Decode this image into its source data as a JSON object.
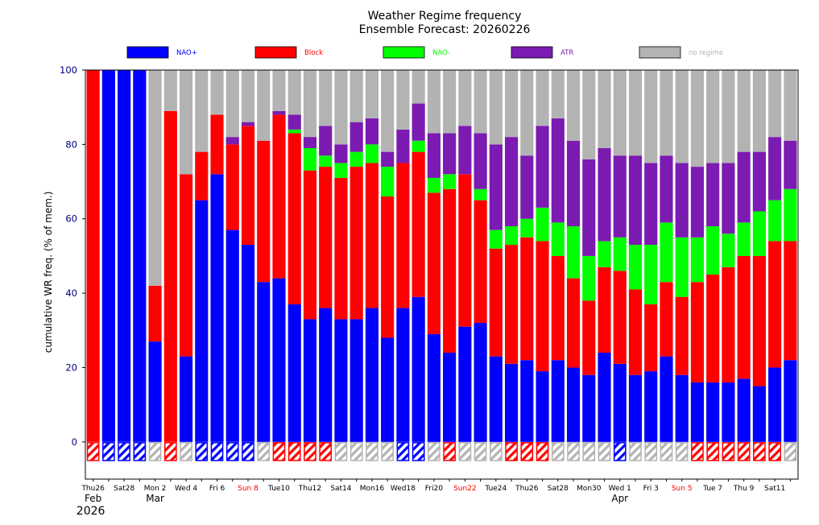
{
  "chart_data": {
    "type": "bar",
    "title": "Weather Regime frequency",
    "subtitle": "Ensemble Forecast: 20260226",
    "ylabel": "cumulative WR freq. (% of mem.)",
    "ylim": [
      -10,
      100
    ],
    "yticks": [
      0,
      20,
      40,
      60,
      80,
      100
    ],
    "stacked": true,
    "legend": {
      "placement": "top"
    },
    "series": [
      {
        "name": "NAO+",
        "color": "#0000ff",
        "values": [
          0,
          100,
          100,
          100,
          27,
          0,
          23,
          65,
          72,
          57,
          53,
          43,
          44,
          37,
          33,
          36,
          33,
          33,
          36,
          28,
          36,
          39,
          29,
          24,
          31,
          32,
          23,
          21,
          22,
          19,
          22,
          20,
          18,
          24,
          21,
          18,
          19,
          23,
          18,
          16,
          16,
          16,
          17,
          15,
          20,
          22
        ]
      },
      {
        "name": "Block",
        "color": "#ff0000",
        "values": [
          100,
          0,
          0,
          0,
          15,
          89,
          49,
          13,
          16,
          23,
          32,
          38,
          44,
          46,
          40,
          38,
          38,
          41,
          39,
          38,
          39,
          39,
          38,
          44,
          41,
          33,
          29,
          32,
          33,
          35,
          28,
          24,
          20,
          23,
          25,
          23,
          18,
          20,
          21,
          27,
          29,
          31,
          33,
          35,
          34,
          32
        ]
      },
      {
        "name": "NAO-",
        "color": "#00ff00",
        "values": [
          0,
          0,
          0,
          0,
          0,
          0,
          0,
          0,
          0,
          0,
          0,
          0,
          0,
          1,
          6,
          3,
          4,
          4,
          5,
          8,
          0,
          3,
          4,
          4,
          0,
          3,
          5,
          5,
          5,
          9,
          9,
          14,
          12,
          7,
          9,
          12,
          16,
          16,
          16,
          12,
          13,
          9,
          9,
          12,
          11,
          14
        ]
      },
      {
        "name": "ATR",
        "color": "#7b1bb1",
        "values": [
          0,
          0,
          0,
          0,
          0,
          0,
          0,
          0,
          0,
          2,
          1,
          0,
          1,
          4,
          3,
          8,
          5,
          8,
          7,
          4,
          9,
          10,
          12,
          11,
          13,
          15,
          23,
          24,
          17,
          22,
          28,
          23,
          26,
          25,
          22,
          24,
          22,
          18,
          20,
          19,
          17,
          19,
          19,
          16,
          17,
          13
        ]
      },
      {
        "name": "no regime",
        "color": "#b3b3b3",
        "values": [
          0,
          0,
          0,
          0,
          58,
          11,
          28,
          22,
          12,
          18,
          14,
          19,
          11,
          12,
          18,
          15,
          20,
          14,
          13,
          22,
          16,
          9,
          17,
          17,
          15,
          17,
          20,
          18,
          23,
          15,
          13,
          19,
          24,
          21,
          23,
          23,
          25,
          23,
          25,
          26,
          25,
          25,
          22,
          22,
          18,
          19
        ]
      }
    ],
    "dominant_regime": [
      "Block",
      "NAO+",
      "NAO+",
      "NAO+",
      "no regime",
      "Block",
      "no regime",
      "NAO+",
      "NAO+",
      "NAO+",
      "NAO+",
      "no regime",
      "Block",
      "Block",
      "Block",
      "Block",
      "no regime",
      "no regime",
      "no regime",
      "no regime",
      "NAO+",
      "NAO+",
      "no regime",
      "Block",
      "no regime",
      "no regime",
      "no regime",
      "Block",
      "Block",
      "Block",
      "no regime",
      "no regime",
      "no regime",
      "no regime",
      "NAO+",
      "no regime",
      "no regime",
      "no regime",
      "no regime",
      "Block",
      "Block",
      "Block",
      "Block",
      "Block",
      "Block",
      "no regime"
    ],
    "x_tick_labels": [
      {
        "index": 0,
        "text": "Thu26",
        "color": "#000000"
      },
      {
        "index": 2,
        "text": "Sat28",
        "color": "#000000"
      },
      {
        "index": 4,
        "text": "Mon 2",
        "color": "#000000"
      },
      {
        "index": 6,
        "text": "Wed 4",
        "color": "#000000"
      },
      {
        "index": 8,
        "text": "Fri 6",
        "color": "#000000"
      },
      {
        "index": 10,
        "text": "Sun 8",
        "color": "#ff0000"
      },
      {
        "index": 12,
        "text": "Tue10",
        "color": "#000000"
      },
      {
        "index": 14,
        "text": "Thu12",
        "color": "#000000"
      },
      {
        "index": 16,
        "text": "Sat14",
        "color": "#000000"
      },
      {
        "index": 18,
        "text": "Mon16",
        "color": "#000000"
      },
      {
        "index": 20,
        "text": "Wed18",
        "color": "#000000"
      },
      {
        "index": 22,
        "text": "Fri20",
        "color": "#000000"
      },
      {
        "index": 24,
        "text": "Sun22",
        "color": "#ff0000"
      },
      {
        "index": 26,
        "text": "Tue24",
        "color": "#000000"
      },
      {
        "index": 28,
        "text": "Thu26",
        "color": "#000000"
      },
      {
        "index": 30,
        "text": "Sat28",
        "color": "#000000"
      },
      {
        "index": 32,
        "text": "Mon30",
        "color": "#000000"
      },
      {
        "index": 34,
        "text": "Wed 1",
        "color": "#000000"
      },
      {
        "index": 36,
        "text": "Fri 3",
        "color": "#000000"
      },
      {
        "index": 38,
        "text": "Sun 5",
        "color": "#ff0000"
      },
      {
        "index": 40,
        "text": "Tue 7",
        "color": "#000000"
      },
      {
        "index": 42,
        "text": "Thu 9",
        "color": "#000000"
      },
      {
        "index": 44,
        "text": "Sat11",
        "color": "#000000"
      }
    ],
    "month_labels": [
      {
        "index": 0,
        "text": "Feb"
      },
      {
        "index": 4,
        "text": "Mar"
      },
      {
        "index": 34,
        "text": "Apr"
      }
    ],
    "year_label": {
      "index": 0,
      "text": "2026"
    }
  }
}
